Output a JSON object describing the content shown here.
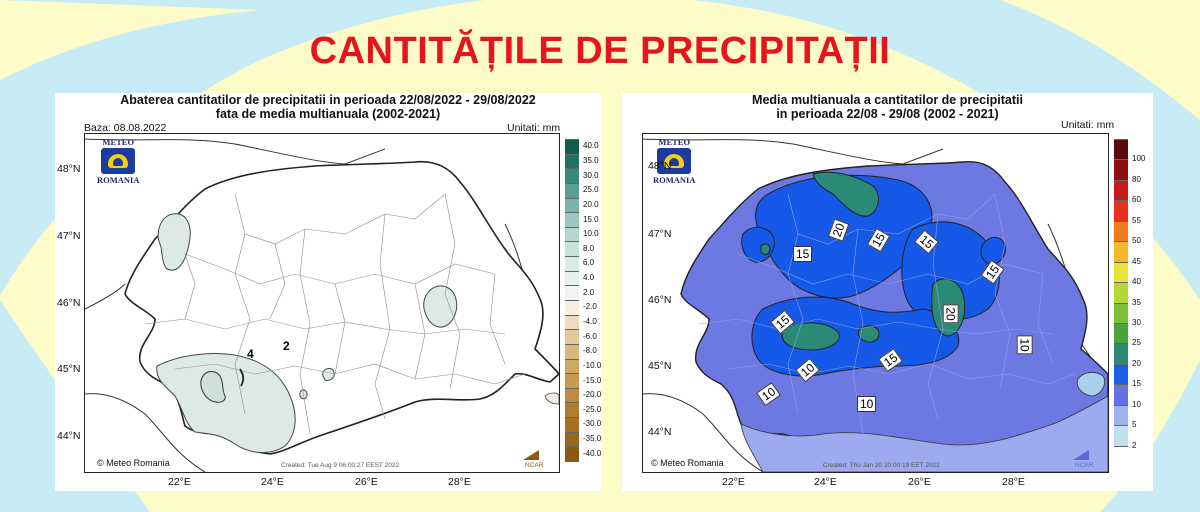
{
  "page": {
    "title": "CANTITĂȚILE DE PRECIPITAȚII",
    "colors": {
      "background": "#fdfbc8",
      "title": "#e8141b",
      "arc": "#c7ecf6"
    }
  },
  "left_map": {
    "title_line1": "Abaterea cantitatilor de precipitatii in perioada 22/08/2022 - 29/08/2022",
    "title_line2": "fata de media multianuala (2002-2021)",
    "base": "Baza: 08.08.2022",
    "units": "Unitati: mm",
    "logo_top": "METEO",
    "logo_bottom": "ROMANIA",
    "copyright": "© Meteo Romania",
    "created": "Created: Tue Aug  9 06:00:27 EEST 2022",
    "ncar": "NCAR",
    "lat_labels": [
      "48°N",
      "47°N",
      "46°N",
      "45°N",
      "44°N"
    ],
    "lon_labels": [
      "22°E",
      "24°E",
      "26°E",
      "28°E"
    ],
    "contour_labels": [
      "4",
      "2"
    ],
    "colorbar_labels": [
      "40.0",
      "35.0",
      "30.0",
      "25.0",
      "20.0",
      "15.0",
      "10.0",
      "8.0",
      "6.0",
      "4.0",
      "2.0",
      "-2.0",
      "-4.0",
      "-6.0",
      "-8.0",
      "-10.0",
      "-15.0",
      "-20.0",
      "-25.0",
      "-30.0",
      "-35.0",
      "-40.0"
    ],
    "colorbar_colors": [
      "#0f5f4c",
      "#1f7563",
      "#3a8a79",
      "#5aa091",
      "#79b5a8",
      "#99c9be",
      "#b4d8cf",
      "#c9e2dc",
      "#d9ebe6",
      "#e6f1ee",
      "#f3f3f3",
      "#f6efdf",
      "#ecdcbc",
      "#e1c99b",
      "#d7b77d",
      "#ccaa66",
      "#c59a4f",
      "#bb8c3f",
      "#b07d30",
      "#a56f25",
      "#99641b",
      "#8c5a14"
    ]
  },
  "right_map": {
    "title_line1": "Media multianuala a cantitatilor de precipitatii",
    "title_line2": "in perioada 22/08 - 29/08 (2002 - 2021)",
    "units": "Unitati: mm",
    "logo_top": "METEO",
    "logo_bottom": "ROMANIA",
    "copyright": "© Meteo Romania",
    "created": "Created: Thu Jan 20 20:00:19 EET 2022",
    "ncar": "NCAR",
    "lat_labels": [
      "48°N",
      "47°N",
      "46°N",
      "45°N",
      "44°N"
    ],
    "lon_labels": [
      "22°E",
      "24°E",
      "26°E",
      "28°E"
    ],
    "contour_labels": [
      "15",
      "20",
      "15",
      "15",
      "15",
      "20",
      "15",
      "15",
      "10",
      "10",
      "10",
      "10"
    ],
    "colorbar_labels": [
      "100",
      "80",
      "60",
      "55",
      "50",
      "45",
      "40",
      "35",
      "30",
      "25",
      "20",
      "15",
      "10",
      "5",
      "2"
    ],
    "colorbar_colors": [
      "#5a0a0a",
      "#8c1010",
      "#c41c1c",
      "#e8301c",
      "#f07a1e",
      "#f5b82b",
      "#e9e23a",
      "#b5d635",
      "#7ebf3a",
      "#49a53a",
      "#2b8a76",
      "#1a5fe6",
      "#6670e0",
      "#9eb4ee",
      "#bfe0ee",
      "#ffffff"
    ]
  }
}
